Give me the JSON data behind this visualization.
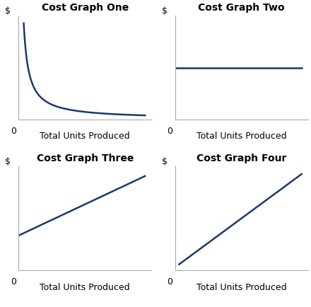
{
  "title1": "Cost Graph One",
  "title2": "Cost Graph Two",
  "title3": "Cost Graph Three",
  "title4": "Cost Graph Four",
  "xlabel": "Total Units Produced",
  "ylabel": "$",
  "x0_label": "0",
  "line_color": "#1a3a6b",
  "line_width": 1.8,
  "bg_color": "#ffffff",
  "title_fontsize": 10,
  "label_fontsize": 9,
  "tick_fontsize": 9,
  "spine_color": "#aaaaaa"
}
